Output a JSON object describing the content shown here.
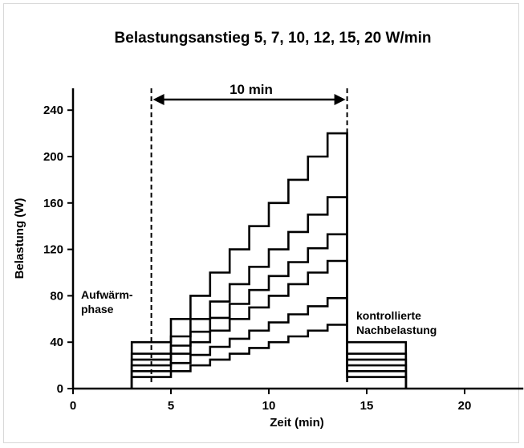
{
  "chart_data": {
    "type": "line",
    "title": "Belastungsanstieg 5, 7, 10, 12, 15, 20 W/min",
    "xlabel": "Zeit (min)",
    "ylabel": "Belastung (W)",
    "xlim": [
      0,
      23
    ],
    "ylim": [
      0,
      250
    ],
    "x_ticks": [
      0,
      5,
      10,
      15,
      20
    ],
    "y_ticks": [
      0,
      40,
      80,
      120,
      160,
      200,
      240
    ],
    "grid": false,
    "legend": "none",
    "phases": {
      "warmup": {
        "start": 3,
        "end": 4,
        "label_line1": "Aufwärm-",
        "label_line2": "phase"
      },
      "ramp": {
        "start": 4,
        "end": 14,
        "duration_label": "10 min"
      },
      "recovery": {
        "start": 14,
        "end": 17,
        "label_line1": "kontrollierte",
        "label_line2": "Nachbelastung"
      }
    },
    "series": [
      {
        "slope": 5,
        "warmup_level": 10,
        "ramp_start": 10,
        "step_increment": 5,
        "recovery_level": 10
      },
      {
        "slope": 7,
        "warmup_level": 15,
        "ramp_start": 15,
        "step_increment": 7,
        "recovery_level": 15
      },
      {
        "slope": 10,
        "warmup_level": 20,
        "ramp_start": 20,
        "step_increment": 10,
        "recovery_level": 20
      },
      {
        "slope": 12,
        "warmup_level": 25,
        "ramp_start": 25,
        "step_increment": 12,
        "recovery_level": 25
      },
      {
        "slope": 15,
        "warmup_level": 30,
        "ramp_start": 30,
        "step_increment": 15,
        "recovery_level": 30
      },
      {
        "slope": 20,
        "warmup_level": 40,
        "ramp_start": 40,
        "step_increment": 20,
        "recovery_level": 40
      }
    ],
    "line_color": "#000000"
  }
}
